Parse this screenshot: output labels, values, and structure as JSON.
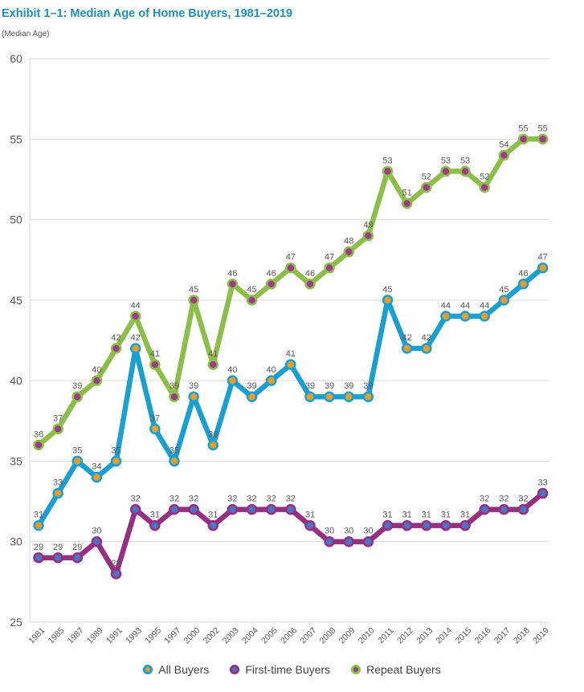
{
  "title": "Exhibit 1–1:  Median Age of Home Buyers, 1981–2019",
  "subtitle": "(Median Age)",
  "colors": {
    "all": "#1a9fd0",
    "first": "#952f82",
    "repeat": "#8dbe4a",
    "marker_all": "#e69d2e",
    "marker_first": "#4d73c2",
    "marker_repeat": "#9a3f84",
    "grid": "#d9d9d9",
    "axis_text": "#595959",
    "label_text": "#595959"
  },
  "chart_data": {
    "type": "line",
    "title": "Exhibit 1–1:  Median Age of Home Buyers, 1981–2019",
    "ylabel": "(Median Age)",
    "xlabel": "",
    "ylim": [
      25,
      60
    ],
    "yticks": [
      25,
      30,
      35,
      40,
      45,
      50,
      55,
      60
    ],
    "grid": true,
    "legend_position": "bottom",
    "categories": [
      "1981",
      "1985",
      "1987",
      "1989",
      "1991",
      "1993",
      "1995",
      "1997",
      "2000",
      "2002",
      "2003",
      "2004",
      "2005",
      "2006",
      "2007",
      "2008",
      "2009",
      "2010",
      "2011",
      "2012",
      "2013",
      "2014",
      "2015",
      "2016",
      "2017",
      "2018",
      "2019"
    ],
    "series": [
      {
        "name": "All Buyers",
        "key": "all",
        "values": [
          31,
          33,
          35,
          34,
          35,
          42,
          37,
          35,
          39,
          36,
          40,
          39,
          40,
          41,
          39,
          39,
          39,
          39,
          45,
          42,
          42,
          44,
          44,
          44,
          45,
          46,
          47
        ]
      },
      {
        "name": "First-time Buyers",
        "key": "first",
        "values": [
          29,
          29,
          29,
          30,
          28,
          32,
          31,
          32,
          32,
          31,
          32,
          32,
          32,
          32,
          31,
          30,
          30,
          30,
          31,
          31,
          31,
          31,
          31,
          32,
          32,
          32,
          33
        ]
      },
      {
        "name": "Repeat Buyers",
        "key": "repeat",
        "values": [
          36,
          37,
          39,
          40,
          42,
          44,
          41,
          39,
          45,
          41,
          46,
          45,
          46,
          47,
          46,
          47,
          48,
          49,
          53,
          51,
          52,
          53,
          53,
          52,
          54,
          55,
          55
        ]
      }
    ]
  }
}
